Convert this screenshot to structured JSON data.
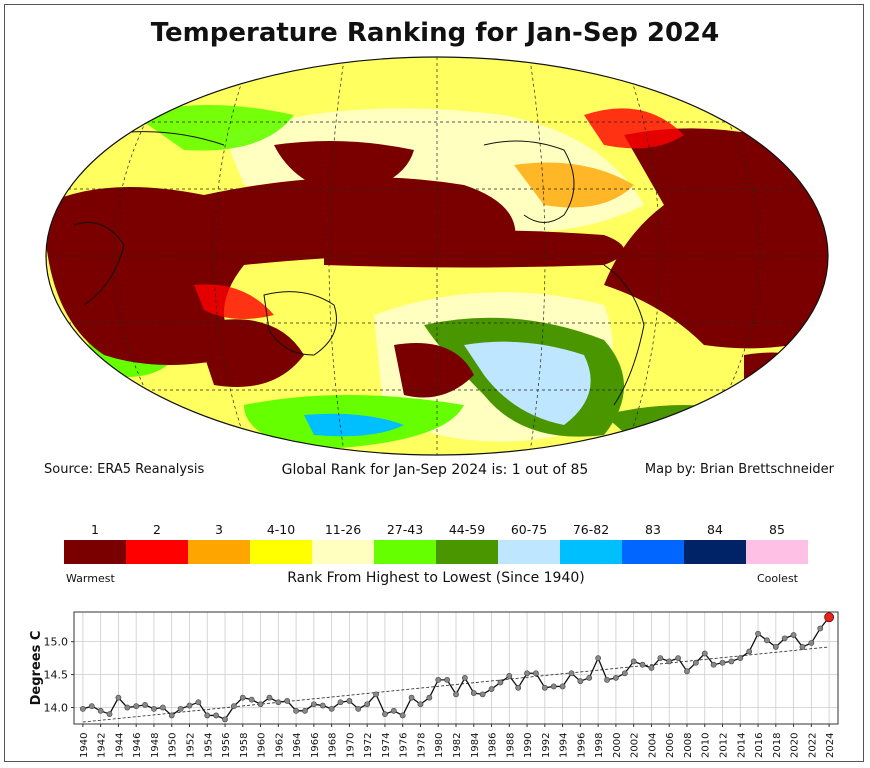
{
  "title": "Temperature Ranking for Jan-Sep 2024",
  "source": "Source: ERA5 Reanalysis",
  "global_rank": "Global Rank for Jan-Sep 2024 is: 1 out of 85",
  "credit": "Map by: Brian Brettschneider",
  "legend": {
    "bins": [
      {
        "label": "1",
        "color": "#7a0000"
      },
      {
        "label": "2",
        "color": "#ff0000"
      },
      {
        "label": "3",
        "color": "#ffa500"
      },
      {
        "label": "4-10",
        "color": "#ffff00"
      },
      {
        "label": "11-26",
        "color": "#ffffc0"
      },
      {
        "label": "27-43",
        "color": "#66ff00"
      },
      {
        "label": "44-59",
        "color": "#4a9600"
      },
      {
        "label": "60-75",
        "color": "#bfe6ff"
      },
      {
        "label": "76-82",
        "color": "#00bfff"
      },
      {
        "label": "83",
        "color": "#0066ff"
      },
      {
        "label": "84",
        "color": "#002266"
      },
      {
        "label": "85",
        "color": "#ffc0e6"
      }
    ],
    "warmest": "Warmest",
    "coolest": "Coolest",
    "axis_label": "Rank From Highest to Lowest (Since 1940)"
  },
  "chart_data": {
    "type": "line",
    "title": "",
    "xlabel": "",
    "ylabel": "Degrees C",
    "x": [
      1940,
      1941,
      1942,
      1943,
      1944,
      1945,
      1946,
      1947,
      1948,
      1949,
      1950,
      1951,
      1952,
      1953,
      1954,
      1955,
      1956,
      1957,
      1958,
      1959,
      1960,
      1961,
      1962,
      1963,
      1964,
      1965,
      1966,
      1967,
      1968,
      1969,
      1970,
      1971,
      1972,
      1973,
      1974,
      1975,
      1976,
      1977,
      1978,
      1979,
      1980,
      1981,
      1982,
      1983,
      1984,
      1985,
      1986,
      1987,
      1988,
      1989,
      1990,
      1991,
      1992,
      1993,
      1994,
      1995,
      1996,
      1997,
      1998,
      1999,
      2000,
      2001,
      2002,
      2003,
      2004,
      2005,
      2006,
      2007,
      2008,
      2009,
      2010,
      2011,
      2012,
      2013,
      2014,
      2015,
      2016,
      2017,
      2018,
      2019,
      2020,
      2021,
      2022,
      2023,
      2024
    ],
    "series": [
      {
        "name": "Jan-Sep global temperature",
        "values": [
          13.98,
          14.02,
          13.95,
          13.9,
          14.15,
          14.0,
          14.02,
          14.04,
          13.98,
          14.0,
          13.88,
          13.98,
          14.03,
          14.08,
          13.88,
          13.88,
          13.82,
          14.02,
          14.15,
          14.12,
          14.05,
          14.15,
          14.08,
          14.1,
          13.95,
          13.95,
          14.05,
          14.03,
          13.98,
          14.08,
          14.1,
          13.98,
          14.05,
          14.2,
          13.9,
          13.95,
          13.88,
          14.15,
          14.05,
          14.15,
          14.42,
          14.42,
          14.2,
          14.45,
          14.22,
          14.2,
          14.28,
          14.38,
          14.48,
          14.3,
          14.52,
          14.52,
          14.3,
          14.32,
          14.32,
          14.52,
          14.4,
          14.45,
          14.75,
          14.42,
          14.45,
          14.52,
          14.7,
          14.65,
          14.6,
          14.75,
          14.7,
          14.75,
          14.55,
          14.68,
          14.82,
          14.65,
          14.68,
          14.7,
          14.75,
          14.85,
          15.12,
          15.02,
          14.92,
          15.05,
          15.1,
          14.92,
          14.98,
          15.2,
          15.37
        ]
      },
      {
        "name": "Linear trend",
        "values_endpoints": [
          13.78,
          14.92
        ]
      }
    ],
    "highlight": {
      "x": 2024,
      "y": 15.37,
      "color": "#e8231b"
    },
    "ylim": [
      13.75,
      15.45
    ],
    "yticks": [
      14.0,
      14.5,
      15.0
    ],
    "ytick_labels": [
      "14.0",
      "14.5",
      "15.0"
    ],
    "xticks": [
      1940,
      1942,
      1944,
      1946,
      1948,
      1950,
      1952,
      1954,
      1956,
      1958,
      1960,
      1962,
      1964,
      1966,
      1968,
      1970,
      1972,
      1974,
      1976,
      1978,
      1980,
      1982,
      1984,
      1986,
      1988,
      1990,
      1992,
      1994,
      1996,
      1998,
      2000,
      2002,
      2004,
      2006,
      2008,
      2010,
      2012,
      2014,
      2016,
      2018,
      2020,
      2022,
      2024
    ],
    "grid": true
  }
}
